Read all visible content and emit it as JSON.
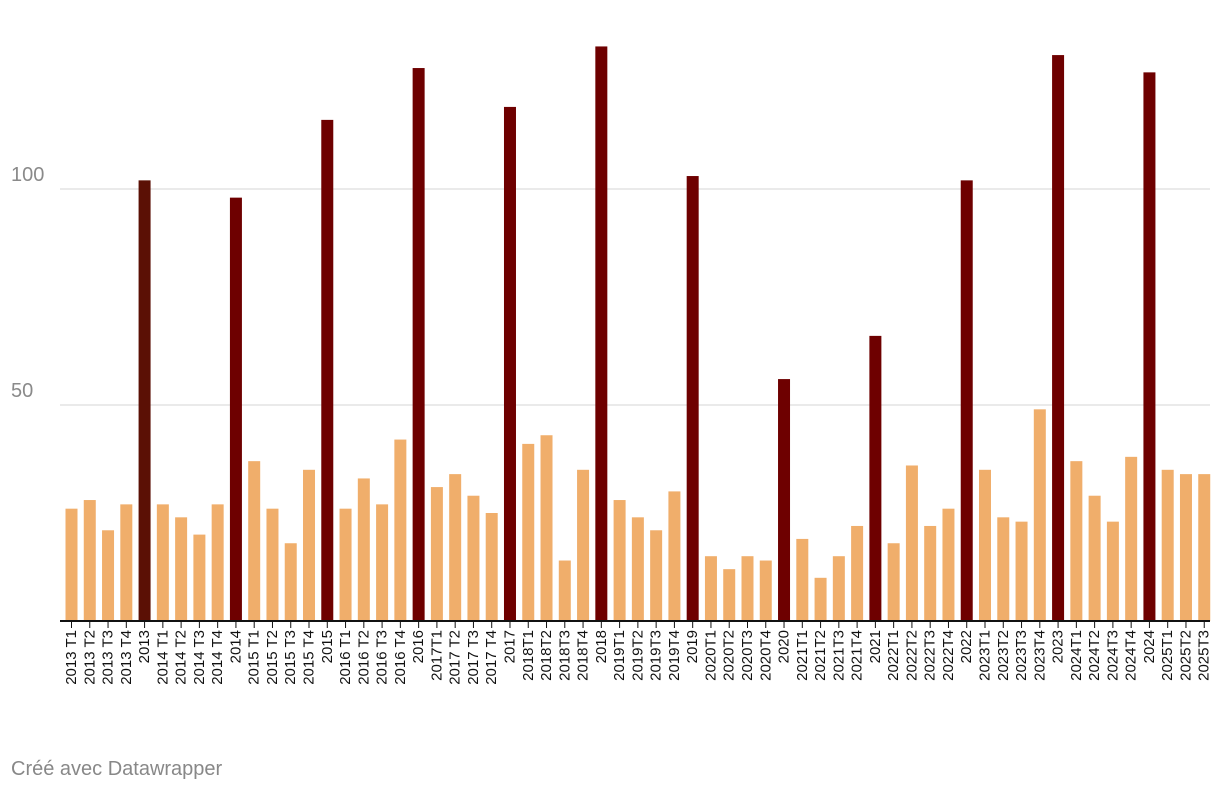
{
  "chart_data": {
    "type": "bar",
    "categories": [
      "2013 T1",
      "2013 T2",
      "2013 T3",
      "2013 T4",
      "2013",
      "2014 T1",
      "2014 T2",
      "2014 T3",
      "2014 T4",
      "2014",
      "2015 T1",
      "2015 T2",
      "2015 T3",
      "2015 T4",
      "2015",
      "2016 T1",
      "2016 T2",
      "2016 T3",
      "2016 T4",
      "2016",
      "2017T1",
      "2017 T2",
      "2017 T3",
      "2017 T4",
      "2017",
      "2018T1",
      "2018T2",
      "2018T3",
      "2018T4",
      "2018",
      "2019T1",
      "2019T2",
      "2019T3",
      "2019T4",
      "2019",
      "2020T1",
      "2020T2",
      "2020T3",
      "2020T4",
      "2020",
      "2021T1",
      "2021T2",
      "2021T3",
      "2021T4",
      "2021",
      "2022T1",
      "2022T2",
      "2022T3",
      "2022T4",
      "2022",
      "2023T1",
      "2023T2",
      "2023T3",
      "2023T4",
      "2023",
      "2024T1",
      "2024T2",
      "2024T3",
      "2024T4",
      "2024",
      "2025T1",
      "2025T2",
      "2025T3"
    ],
    "values": [
      26,
      28,
      21,
      27,
      102,
      27,
      24,
      20,
      27,
      98,
      37,
      26,
      18,
      35,
      116,
      26,
      33,
      27,
      42,
      128,
      31,
      34,
      29,
      25,
      119,
      41,
      43,
      14,
      35,
      133,
      28,
      24,
      21,
      30,
      103,
      15,
      12,
      15,
      14,
      56,
      19,
      10,
      15,
      22,
      66,
      18,
      36,
      22,
      26,
      102,
      35,
      24,
      23,
      49,
      131,
      37,
      29,
      23,
      38,
      127,
      35,
      34,
      34
    ],
    "annual": [
      false,
      false,
      false,
      false,
      true,
      false,
      false,
      false,
      false,
      true,
      false,
      false,
      false,
      false,
      true,
      false,
      false,
      false,
      false,
      true,
      false,
      false,
      false,
      false,
      true,
      false,
      false,
      false,
      false,
      true,
      false,
      false,
      false,
      false,
      true,
      false,
      false,
      false,
      false,
      true,
      false,
      false,
      false,
      false,
      true,
      false,
      false,
      false,
      false,
      true,
      false,
      false,
      false,
      false,
      true,
      false,
      false,
      false,
      false,
      true,
      false,
      false,
      false
    ],
    "ylim": [
      0,
      140
    ],
    "yticks": [
      50,
      100
    ],
    "grid": true,
    "colors": {
      "quarter": "#f0ae6b",
      "annual": "#6e0000",
      "annual_first": "#5b1005",
      "grid": "#e4e4e4",
      "axis": "#111111",
      "tick_label": "#8a8a8a"
    }
  },
  "footer": {
    "credit": "Créé avec Datawrapper"
  }
}
